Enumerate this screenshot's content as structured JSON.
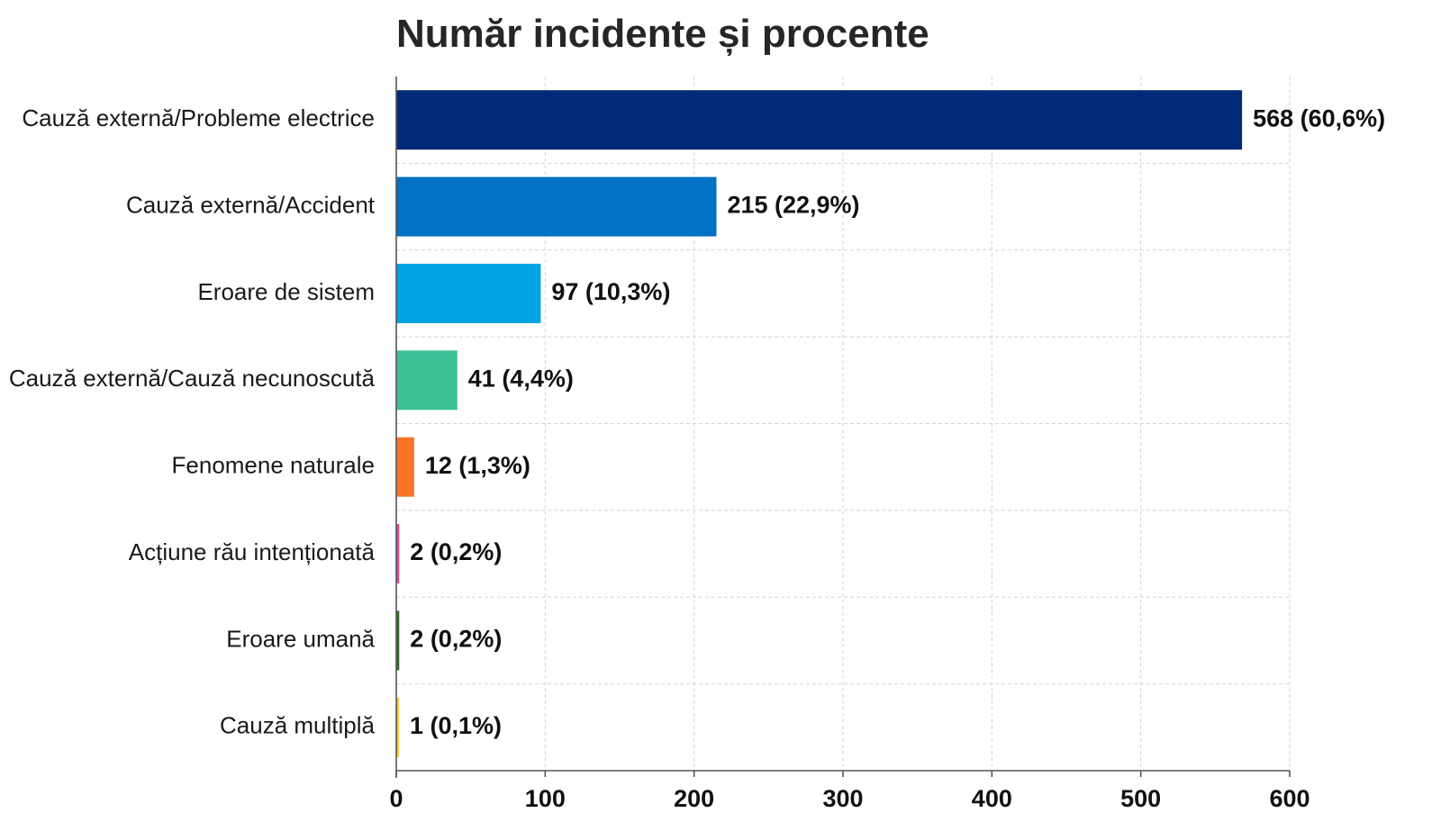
{
  "chart_data": {
    "type": "bar",
    "orientation": "horizontal",
    "title": "Număr incidente și procente",
    "xlabel": "",
    "ylabel": "",
    "xlim": [
      0,
      600
    ],
    "x_ticks": [
      0,
      100,
      200,
      300,
      400,
      500,
      600
    ],
    "grid": true,
    "legend": "none",
    "categories": [
      "Cauză externă/Probleme electrice",
      "Cauză externă/Accident",
      "Eroare de sistem",
      "Cauză externă/Cauză necunoscută",
      "Fenomene naturale",
      "Acțiune rău intenționată",
      "Eroare umană",
      "Cauză multiplă"
    ],
    "values": [
      568,
      215,
      97,
      41,
      12,
      2,
      2,
      1
    ],
    "data_labels": [
      "568 (60,6%)",
      "215 (22,9%)",
      "97 (10,3%)",
      "41 (4,4%)",
      "12 (1,3%)",
      "2 (0,2%)",
      "2 (0,2%)",
      "1 (0,1%)"
    ],
    "colors": [
      "#002a78",
      "#0071c5",
      "#00a2e2",
      "#3dbf96",
      "#fb7424",
      "#e0488e",
      "#2f6b20",
      "#f2cc3a"
    ]
  }
}
